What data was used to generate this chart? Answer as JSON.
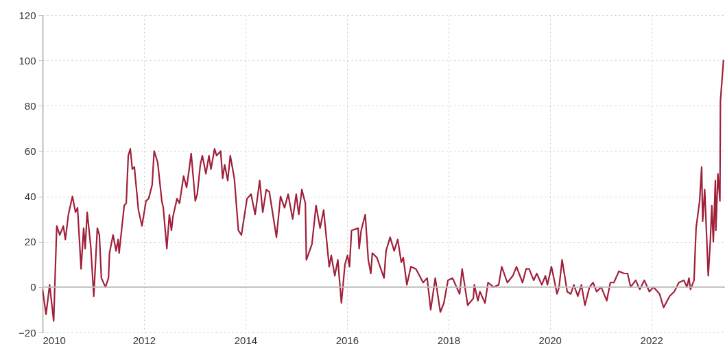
{
  "chart_data": {
    "type": "line",
    "x": [
      2010.0,
      2010.07,
      2010.14,
      2010.22,
      2010.28,
      2010.34,
      2010.41,
      2010.45,
      2010.51,
      2010.59,
      2010.65,
      2010.69,
      2010.76,
      2010.81,
      2010.84,
      2010.88,
      2010.95,
      2011.01,
      2011.08,
      2011.12,
      2011.16,
      2011.24,
      2011.3,
      2011.32,
      2011.39,
      2011.45,
      2011.49,
      2011.51,
      2011.61,
      2011.65,
      2011.69,
      2011.73,
      2011.77,
      2011.81,
      2011.89,
      2011.96,
      2012.04,
      2012.09,
      2012.16,
      2012.2,
      2012.27,
      2012.35,
      2012.38,
      2012.45,
      2012.5,
      2012.54,
      2012.57,
      2012.65,
      2012.7,
      2012.78,
      2012.84,
      2012.89,
      2012.93,
      2013.01,
      2013.05,
      2013.11,
      2013.15,
      2013.22,
      2013.28,
      2013.32,
      2013.39,
      2013.43,
      2013.51,
      2013.55,
      2013.59,
      2013.65,
      2013.7,
      2013.78,
      2013.86,
      2013.92,
      2014.03,
      2014.11,
      2014.19,
      2014.28,
      2014.34,
      2014.41,
      2014.47,
      2014.54,
      2014.61,
      2014.69,
      2014.77,
      2014.84,
      2014.93,
      2015.0,
      2015.05,
      2015.11,
      2015.18,
      2015.2,
      2015.31,
      2015.39,
      2015.47,
      2015.54,
      2015.65,
      2015.69,
      2015.76,
      2015.82,
      2015.89,
      2015.96,
      2016.01,
      2016.05,
      2016.09,
      2016.22,
      2016.24,
      2016.28,
      2016.36,
      2016.42,
      2016.47,
      2016.5,
      2016.59,
      2016.73,
      2016.77,
      2016.85,
      2016.93,
      2017.0,
      2017.07,
      2017.11,
      2017.18,
      2017.26,
      2017.36,
      2017.5,
      2017.58,
      2017.65,
      2017.74,
      2017.84,
      2017.91,
      2017.99,
      2018.08,
      2018.22,
      2018.27,
      2018.38,
      2018.49,
      2018.51,
      2018.58,
      2018.62,
      2018.72,
      2018.78,
      2018.89,
      2018.99,
      2019.05,
      2019.16,
      2019.27,
      2019.34,
      2019.46,
      2019.53,
      2019.59,
      2019.68,
      2019.74,
      2019.84,
      2019.91,
      2019.95,
      2020.03,
      2020.14,
      2020.18,
      2020.24,
      2020.34,
      2020.41,
      2020.47,
      2020.55,
      2020.62,
      2020.69,
      2020.78,
      2020.85,
      2020.92,
      2021.01,
      2021.12,
      2021.19,
      2021.26,
      2021.36,
      2021.46,
      2021.53,
      2021.59,
      2021.69,
      2021.77,
      2021.86,
      2021.96,
      2022.04,
      2022.16,
      2022.24,
      2022.36,
      2022.45,
      2022.54,
      2022.64,
      2022.7,
      2022.74,
      2022.77,
      2022.84,
      2022.88,
      2022.95,
      2022.99,
      2023.01,
      2023.05,
      2023.12,
      2023.16,
      2023.19,
      2023.22,
      2023.26,
      2023.27,
      2023.31,
      2023.35,
      2023.36,
      2023.42
    ],
    "series": [
      {
        "color": "#a0203a",
        "values": [
          -1,
          -12,
          1,
          -15,
          27,
          23,
          27,
          21,
          32,
          40,
          33,
          35,
          8,
          26,
          17,
          33,
          18,
          -4,
          26,
          23,
          4,
          0,
          4,
          15,
          23,
          16,
          21,
          15,
          36,
          37,
          58,
          61,
          52,
          53,
          34,
          27,
          38,
          39,
          45,
          60,
          55,
          38,
          35,
          17,
          32,
          25,
          31,
          39,
          37,
          49,
          44,
          52,
          59,
          38,
          41,
          54,
          58,
          50,
          58,
          52,
          61,
          58,
          60,
          48,
          54,
          47,
          58,
          48,
          25,
          23,
          39,
          41,
          32,
          47,
          33,
          43,
          42,
          32,
          22,
          40,
          35,
          41,
          30,
          41,
          32,
          43,
          37,
          12,
          19,
          36,
          26,
          34,
          9,
          14,
          5,
          12,
          -7,
          10,
          14,
          9,
          25,
          26,
          17,
          25,
          32,
          12,
          6,
          15,
          13,
          4,
          16,
          22,
          16,
          21,
          11,
          13,
          1,
          9,
          8,
          2,
          4,
          -10,
          4,
          -11,
          -7,
          3,
          4,
          -3,
          8,
          -8,
          -5,
          1,
          -6,
          -2,
          -7,
          2,
          0,
          1,
          9,
          2,
          5,
          9,
          2,
          8,
          8,
          3,
          6,
          1,
          5,
          1,
          9,
          -3,
          0,
          12,
          -2,
          -3,
          1,
          -4,
          1,
          -8,
          0,
          2,
          -2,
          0,
          -6,
          2,
          2,
          7,
          6,
          6,
          0,
          3,
          -1,
          3,
          -2,
          0,
          -3,
          -9,
          -4,
          -2,
          2,
          3,
          0,
          4,
          -1,
          3,
          26,
          38,
          53,
          29,
          43,
          5,
          20,
          36,
          20,
          47,
          25,
          50,
          38,
          82,
          100
        ]
      }
    ],
    "xlim": [
      2010,
      2023.45
    ],
    "xticks": [
      2010,
      2012,
      2014,
      2016,
      2018,
      2020,
      2022
    ],
    "ylim": [
      -20,
      120
    ],
    "yticks": [
      -20,
      0,
      20,
      40,
      60,
      80,
      100,
      120
    ],
    "grid": true,
    "line_style": "solid",
    "marker": "none",
    "ref_lines": [
      {
        "axis": "y",
        "value": 0,
        "color": "#bfbfbf"
      }
    ]
  }
}
